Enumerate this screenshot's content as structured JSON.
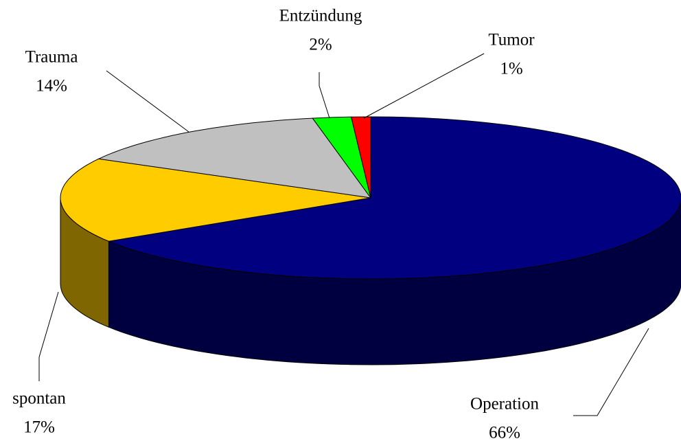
{
  "chart_data": {
    "type": "pie3d",
    "categories": [
      "Operation",
      "spontan",
      "Trauma",
      "Entzündung",
      "Tumor"
    ],
    "values": [
      66,
      17,
      14,
      2,
      1
    ],
    "value_labels": [
      "66%",
      "17%",
      "14%",
      "2%",
      "1%"
    ],
    "colors": [
      "#000080",
      "#ffcc00",
      "#c0c0c0",
      "#00ff00",
      "#ff0000"
    ],
    "side_colors": [
      "#000040",
      "#806600",
      "#606060",
      "#008000",
      "#800000"
    ]
  }
}
